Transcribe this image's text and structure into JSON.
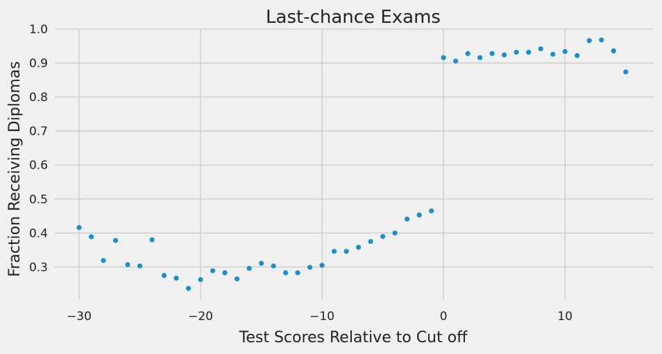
{
  "chart_data": {
    "type": "scatter",
    "title": "Last-chance Exams",
    "xlabel": "Test Scores Relative to Cut off",
    "ylabel": "Fraction Receiving Diplomas",
    "xlim": [
      -32,
      17.3
    ],
    "ylim": [
      0.205,
      1.0
    ],
    "x_ticks": [
      -30,
      -20,
      -10,
      0,
      10
    ],
    "y_ticks": [
      0.3,
      0.4,
      0.5,
      0.6,
      0.7,
      0.8,
      0.9,
      1.0
    ],
    "x_tick_labels": [
      "−30",
      "−20",
      "−10",
      "0",
      "10"
    ],
    "y_tick_labels": [
      "0.3",
      "0.4",
      "0.5",
      "0.6",
      "0.7",
      "0.8",
      "0.9",
      "1.0"
    ],
    "grid": true,
    "legend": "none",
    "colors": {
      "points": "#1a8fcc",
      "background": "#f0f0f0",
      "grid": "#cbcbcb",
      "text": "#222222"
    },
    "x": [
      -30,
      -29,
      -28,
      -27,
      -26,
      -25,
      -24,
      -23,
      -22,
      -21,
      -20,
      -19,
      -18,
      -17,
      -16,
      -15,
      -14,
      -13,
      -12,
      -11,
      -10,
      -9,
      -8,
      -7,
      -6,
      -5,
      -4,
      -3,
      -2,
      -1,
      0,
      1,
      2,
      3,
      4,
      5,
      6,
      7,
      8,
      9,
      10,
      11,
      12,
      13,
      14,
      15
    ],
    "y": [
      0.416,
      0.389,
      0.319,
      0.378,
      0.307,
      0.303,
      0.38,
      0.275,
      0.267,
      0.237,
      0.263,
      0.289,
      0.283,
      0.265,
      0.296,
      0.311,
      0.303,
      0.283,
      0.283,
      0.299,
      0.305,
      0.346,
      0.346,
      0.358,
      0.375,
      0.39,
      0.4,
      0.441,
      0.453,
      0.465,
      0.916,
      0.906,
      0.928,
      0.916,
      0.928,
      0.924,
      0.932,
      0.932,
      0.942,
      0.926,
      0.934,
      0.922,
      0.966,
      0.968,
      0.936,
      0.874
    ]
  }
}
